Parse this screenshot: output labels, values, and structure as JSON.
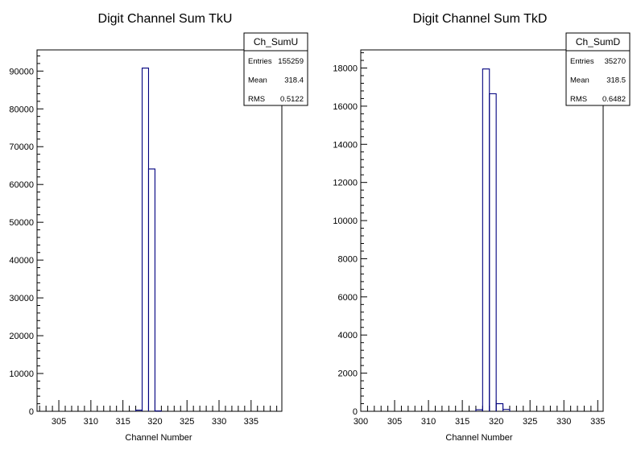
{
  "chart_data": [
    {
      "type": "bar",
      "title": "Digit Channel Sum TkU",
      "xlabel": "Channel Number",
      "ylabel": "",
      "xlim": [
        301.6,
        339.8
      ],
      "ylim": [
        0,
        95600
      ],
      "xticks": [
        305,
        310,
        315,
        320,
        325,
        330,
        335
      ],
      "yticks": [
        0,
        10000,
        20000,
        30000,
        40000,
        50000,
        60000,
        70000,
        80000,
        90000
      ],
      "bin_width": 1,
      "bins": [
        {
          "x0": 317,
          "x1": 318,
          "y": 300
        },
        {
          "x0": 318,
          "x1": 319,
          "y": 90800
        },
        {
          "x0": 319,
          "x1": 320,
          "y": 64100
        },
        {
          "x0": 320,
          "x1": 321,
          "y": 100
        }
      ],
      "stats": {
        "name": "Ch_SumU",
        "rows": [
          {
            "label": "Entries",
            "value": "155259"
          },
          {
            "label": "Mean",
            "value": "318.4"
          },
          {
            "label": "RMS",
            "value": "0.5122"
          }
        ]
      },
      "line_color": "#00007f",
      "grid": false
    },
    {
      "type": "bar",
      "title": "Digit Channel Sum TkD",
      "xlabel": "Channel Number",
      "ylabel": "",
      "xlim": [
        300,
        335.8
      ],
      "ylim": [
        0,
        18950
      ],
      "xticks": [
        300,
        305,
        310,
        315,
        320,
        325,
        330,
        335
      ],
      "yticks": [
        0,
        2000,
        4000,
        6000,
        8000,
        10000,
        12000,
        14000,
        16000,
        18000
      ],
      "bin_width": 1,
      "bins": [
        {
          "x0": 317,
          "x1": 318,
          "y": 80
        },
        {
          "x0": 318,
          "x1": 319,
          "y": 17950
        },
        {
          "x0": 319,
          "x1": 320,
          "y": 16650
        },
        {
          "x0": 320,
          "x1": 321,
          "y": 400
        },
        {
          "x0": 321,
          "x1": 322,
          "y": 100
        }
      ],
      "stats": {
        "name": "Ch_SumD",
        "rows": [
          {
            "label": "Entries",
            "value": "35270"
          },
          {
            "label": "Mean",
            "value": "318.5"
          },
          {
            "label": "RMS",
            "value": "0.6482"
          }
        ]
      },
      "line_color": "#00007f",
      "grid": false
    }
  ]
}
